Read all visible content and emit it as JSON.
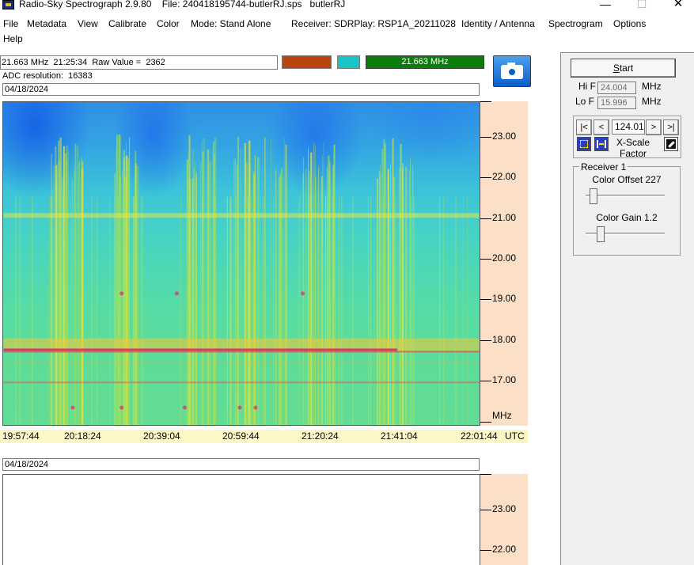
{
  "window": {
    "title": "Radio-Sky Spectrograph 2.9.80    File: 240418195744-butlerRJ.sps   butlerRJ",
    "minimize_glyph": "—",
    "maximize_glyph": "☐",
    "close_glyph": "✕"
  },
  "menu": {
    "file": "File",
    "metadata": "Metadata",
    "view": "View",
    "calibrate": "Calibrate",
    "color": "Color",
    "mode": "Mode: Stand Alone",
    "receiver": "Receiver:  SDRPlay: RSP1A_20211028",
    "identity": "Identity / Antenna",
    "spectrogram": "Spectrogram",
    "options": "Options",
    "help": "Help"
  },
  "readout": {
    "text": "21.663 MHz  21:25:34  Raw Value =  2362",
    "freq_badge": "21.663 MHz",
    "swatch1_color": "#b84510",
    "swatch2_color": "#1ac4c4",
    "badge_color": "#0c7c0c",
    "adc": "ADC resolution:  16383"
  },
  "camera_icon": "camera-icon",
  "top_plot": {
    "date": "04/18/2024",
    "y_ticks": [
      "23.00",
      "22.00",
      "21.00",
      "20.00",
      "19.00",
      "18.00",
      "17.00"
    ],
    "unit": "MHz",
    "x_ticks": [
      "19:57:44",
      "20:18:24",
      "20:39:04",
      "20:59:44",
      "21:20:24",
      "21:41:04",
      "22:01:44"
    ],
    "x_unit": "UTC"
  },
  "bottom_plot": {
    "date": "04/18/2024",
    "y_ticks": [
      "23.00",
      "22.00"
    ]
  },
  "panel": {
    "start_label": "Start",
    "start_accel": "S",
    "start_rest": "tart",
    "hi_label": "Hi F",
    "hi_value": "24.004",
    "lo_label": "Lo F",
    "lo_value": "15.996",
    "unit": "MHz",
    "nav_first": "|<",
    "nav_prev": "<",
    "nav_next": ">",
    "nav_last": ">|",
    "scale_value": "124.01",
    "xscale_line1": "X-Scale",
    "xscale_line2": "Factor",
    "receiver_group": "Receiver 1",
    "color_offset_label": "Color Offset 227",
    "color_offset_value": 227,
    "color_gain_label": "Color Gain 1.2",
    "color_gain_value": 1.2
  }
}
